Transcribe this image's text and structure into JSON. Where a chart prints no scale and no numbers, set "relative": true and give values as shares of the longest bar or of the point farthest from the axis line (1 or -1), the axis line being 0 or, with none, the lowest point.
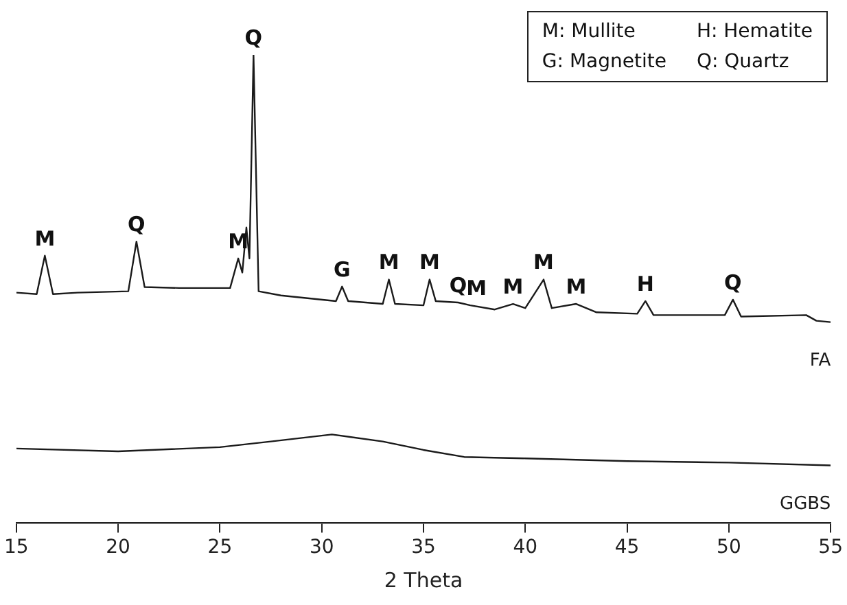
{
  "chart_data": {
    "type": "line",
    "relative": true,
    "xlabel": "2 Theta",
    "xlim": [
      15,
      55
    ],
    "xticks": [
      15,
      20,
      25,
      30,
      35,
      40,
      45,
      50,
      55
    ],
    "grid": false,
    "legend": false,
    "marker": "none",
    "line_style": "solid",
    "series": [
      {
        "name": "FA",
        "color": "#1a1a1a",
        "x": [
          15,
          16,
          16.4,
          16.8,
          18,
          20.5,
          20.9,
          21.3,
          23,
          25.5,
          25.9,
          26.1,
          26.3,
          26.45,
          26.65,
          26.9,
          28,
          30.7,
          31,
          31.3,
          33,
          33.3,
          33.6,
          35,
          35.3,
          35.6,
          36.7,
          37.3,
          38.5,
          39.4,
          40,
          40.9,
          41.3,
          42.5,
          43.5,
          45.5,
          45.9,
          46.3,
          49.8,
          50.2,
          50.6,
          53.8,
          54.3,
          55
        ],
        "values": [
          0.492,
          0.489,
          0.571,
          0.489,
          0.492,
          0.495,
          0.601,
          0.504,
          0.502,
          0.502,
          0.565,
          0.535,
          0.631,
          0.565,
          1,
          0.495,
          0.486,
          0.474,
          0.505,
          0.474,
          0.468,
          0.52,
          0.468,
          0.465,
          0.52,
          0.474,
          0.471,
          0.465,
          0.456,
          0.468,
          0.459,
          0.52,
          0.459,
          0.468,
          0.45,
          0.447,
          0.474,
          0.444,
          0.444,
          0.477,
          0.441,
          0.444,
          0.432,
          0.429
        ]
      },
      {
        "name": "GGBS",
        "color": "#1a1a1a",
        "x": [
          15,
          20,
          25,
          27.5,
          30.5,
          33,
          35,
          37,
          40,
          45,
          50,
          55
        ],
        "values": [
          0.159,
          0.153,
          0.162,
          0.174,
          0.189,
          0.174,
          0.156,
          0.141,
          0.138,
          0.132,
          0.129,
          0.123
        ]
      }
    ],
    "annotations": [
      "M: Mullite",
      "H: Hematite",
      "G: Magnetite",
      "Q: Quartz",
      {
        "text": "M",
        "x": 16.4,
        "y": 0.571
      },
      {
        "text": "Q",
        "x": 20.9,
        "y": 0.601
      },
      {
        "text": "M",
        "x": 25.9,
        "y": 0.565
      },
      {
        "text": "Q",
        "x": 26.65,
        "y": 1
      },
      {
        "text": "G",
        "x": 31,
        "y": 0.505
      },
      {
        "text": "M",
        "x": 33.3,
        "y": 0.52
      },
      {
        "text": "M",
        "x": 35.3,
        "y": 0.52
      },
      {
        "text": "Q",
        "x": 36.7,
        "y": 0.471
      },
      {
        "text": "M",
        "x": 37.6,
        "y": 0.465
      },
      {
        "text": "M",
        "x": 39.4,
        "y": 0.468
      },
      {
        "text": "M",
        "x": 40.9,
        "y": 0.52
      },
      {
        "text": "M",
        "x": 42.5,
        "y": 0.468
      },
      {
        "text": "H",
        "x": 45.9,
        "y": 0.474
      },
      {
        "text": "Q",
        "x": 50.2,
        "y": 0.477
      }
    ]
  }
}
